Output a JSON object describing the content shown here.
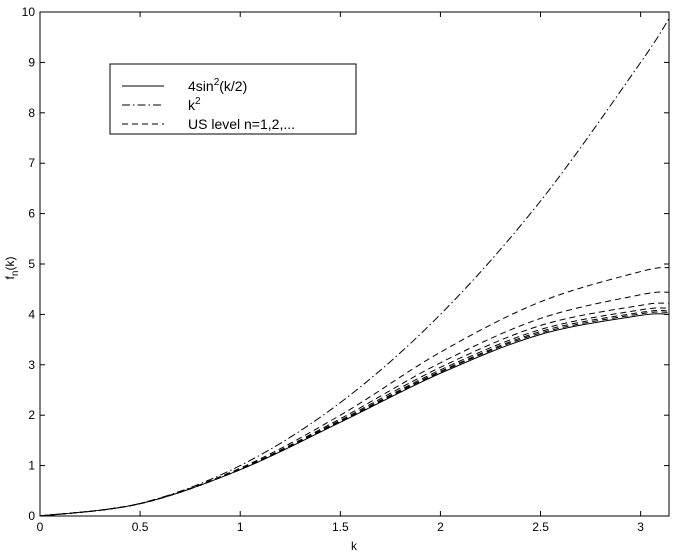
{
  "chart_data": {
    "type": "line",
    "title": "",
    "xlabel": "k",
    "ylabel_main": "f",
    "ylabel_sub": "n",
    "ylabel_tail": "(k)",
    "xlim": [
      0,
      3.1416
    ],
    "ylim": [
      0,
      10
    ],
    "xticks": [
      0,
      0.5,
      1,
      1.5,
      2,
      2.5,
      3
    ],
    "xtick_labels": [
      "0",
      "0.5",
      "1",
      "1.5",
      "2",
      "2.5",
      "3"
    ],
    "yticks": [
      0,
      1,
      2,
      3,
      4,
      5,
      6,
      7,
      8,
      9,
      10
    ],
    "ytick_labels": [
      "0",
      "1",
      "2",
      "3",
      "4",
      "5",
      "6",
      "7",
      "8",
      "9",
      "10"
    ],
    "grid": false,
    "legend": {
      "placement": "upper-left",
      "entries": [
        {
          "pre": "4sin",
          "sup": "2",
          "post": "(k/2)",
          "style": "solid"
        },
        {
          "pre": "k",
          "sup": "2",
          "post": "",
          "style": "dashdot"
        },
        {
          "pre": "US level n=1,2,...",
          "sup": "",
          "post": "",
          "style": "dashed"
        }
      ]
    },
    "series": [
      {
        "formula": "4sin^2(k/2)",
        "style": "solid",
        "x": [
          0,
          0.5,
          1,
          1.5,
          2,
          2.5,
          3,
          3.1416
        ],
        "y": [
          0,
          0.245,
          0.919,
          1.859,
          2.832,
          3.602,
          3.98,
          4.0
        ]
      },
      {
        "formula": "k^2",
        "style": "dashdot",
        "x": [
          0,
          0.5,
          1,
          1.5,
          2,
          2.5,
          3,
          3.1416
        ],
        "y": [
          0,
          0.25,
          1.0,
          2.25,
          4.0,
          6.25,
          9.0,
          9.87
        ]
      },
      {
        "style": "dashed",
        "x": [
          0,
          0.5,
          1,
          1.5,
          2,
          2.5,
          3,
          3.1416
        ],
        "y": [
          0,
          0.247,
          0.95,
          2.0,
          3.25,
          4.25,
          4.85,
          4.93
        ]
      },
      {
        "style": "dashed",
        "x": [
          0,
          0.5,
          1,
          1.5,
          2,
          2.5,
          3,
          3.1416
        ],
        "y": [
          0,
          0.246,
          0.935,
          1.93,
          3.04,
          3.92,
          4.39,
          4.44
        ]
      },
      {
        "style": "dashed",
        "x": [
          0,
          0.5,
          1,
          1.5,
          2,
          2.5,
          3,
          3.1416
        ],
        "y": [
          0,
          0.246,
          0.928,
          1.9,
          2.95,
          3.78,
          4.18,
          4.22
        ]
      },
      {
        "style": "dashed",
        "x": [
          0,
          0.5,
          1,
          1.5,
          2,
          2.5,
          3,
          3.1416
        ],
        "y": [
          0,
          0.245,
          0.924,
          1.88,
          2.9,
          3.7,
          4.09,
          4.12
        ]
      },
      {
        "style": "dashed",
        "x": [
          0,
          0.5,
          1,
          1.5,
          2,
          2.5,
          3,
          3.1416
        ],
        "y": [
          0,
          0.245,
          0.922,
          1.87,
          2.87,
          3.66,
          4.04,
          4.07
        ]
      },
      {
        "style": "dashed",
        "x": [
          0,
          0.5,
          1,
          1.5,
          2,
          2.5,
          3,
          3.1416
        ],
        "y": [
          0,
          0.245,
          0.921,
          1.865,
          2.855,
          3.63,
          4.01,
          4.04
        ]
      }
    ]
  }
}
